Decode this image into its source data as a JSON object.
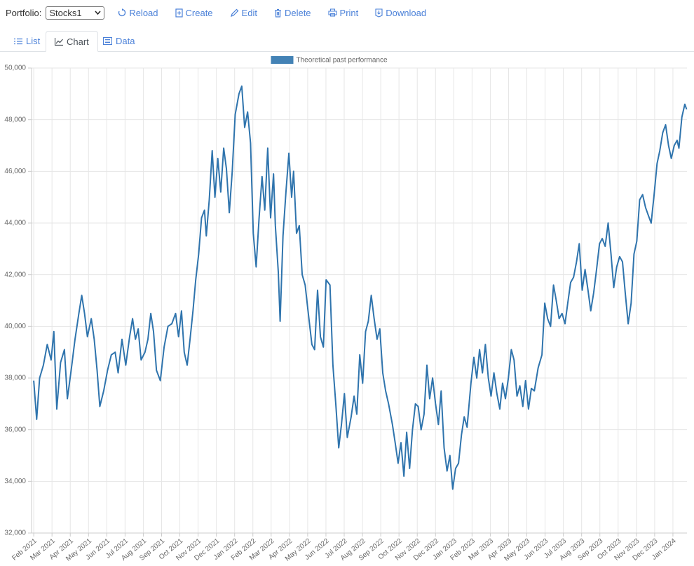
{
  "toolbar": {
    "label": "Portfolio:",
    "selected": "Stocks1",
    "buttons": [
      "Reload",
      "Create",
      "Edit",
      "Delete",
      "Print",
      "Download"
    ]
  },
  "tabs": [
    "List",
    "Chart",
    "Data"
  ],
  "chart_data": {
    "type": "line",
    "x": [
      0,
      0.16,
      0.32,
      0.53,
      0.74,
      0.95,
      1.1,
      1.26,
      1.47,
      1.68,
      1.84,
      2.05,
      2.26,
      2.47,
      2.63,
      2.78,
      2.94,
      3.15,
      3.31,
      3.47,
      3.62,
      3.83,
      4.04,
      4.25,
      4.46,
      4.62,
      4.83,
      5.04,
      5.25,
      5.41,
      5.57,
      5.72,
      5.88,
      6.09,
      6.25,
      6.41,
      6.56,
      6.72,
      6.93,
      7.14,
      7.35,
      7.56,
      7.77,
      7.93,
      8.09,
      8.24,
      8.4,
      8.56,
      8.72,
      8.87,
      9.03,
      9.19,
      9.35,
      9.45,
      9.61,
      9.77,
      9.92,
      10.08,
      10.24,
      10.4,
      10.55,
      10.71,
      10.87,
      11.03,
      11.24,
      11.39,
      11.55,
      11.71,
      11.87,
      12.02,
      12.18,
      12.34,
      12.5,
      12.65,
      12.81,
      12.97,
      13.13,
      13.23,
      13.39,
      13.49,
      13.65,
      13.81,
      13.97,
      14.12,
      14.23,
      14.39,
      14.54,
      14.7,
      14.86,
      15.02,
      15.23,
      15.38,
      15.54,
      15.7,
      15.86,
      16.01,
      16.22,
      16.38,
      16.54,
      16.7,
      16.85,
      17.01,
      17.17,
      17.38,
      17.54,
      17.69,
      17.85,
      18.01,
      18.17,
      18.32,
      18.48,
      18.64,
      18.8,
      18.95,
      19.11,
      19.27,
      19.43,
      19.64,
      19.79,
      19.95,
      20.11,
      20.27,
      20.42,
      20.58,
      20.74,
      20.9,
      21.05,
      21.21,
      21.37,
      21.53,
      21.68,
      21.84,
      22.0,
      22.16,
      22.31,
      22.47,
      22.63,
      22.79,
      22.94,
      23.1,
      23.26,
      23.42,
      23.57,
      23.73,
      23.94,
      24.1,
      24.26,
      24.41,
      24.57,
      24.73,
      24.89,
      25.04,
      25.2,
      25.36,
      25.52,
      25.67,
      25.83,
      25.99,
      26.15,
      26.3,
      26.46,
      26.62,
      26.78,
      26.93,
      27.09,
      27.25,
      27.41,
      27.62,
      27.83,
      27.98,
      28.14,
      28.3,
      28.46,
      28.61,
      28.77,
      28.93,
      29.09,
      29.24,
      29.4,
      29.56,
      29.72,
      29.87,
      30.03,
      30.19,
      30.35,
      30.5,
      30.66,
      30.82,
      30.98,
      31.13,
      31.29,
      31.45,
      31.61,
      31.76,
      31.92,
      32.08,
      32.24,
      32.39,
      32.55,
      32.71,
      32.87,
      33.02,
      33.18,
      33.34,
      33.5,
      33.65,
      33.81,
      33.97,
      34.13,
      34.28,
      34.44,
      34.6,
      34.76,
      34.91,
      35.07,
      35.23,
      35.33,
      35.49,
      35.65,
      35.75
    ],
    "series": [
      {
        "name": "Theoretical past performance",
        "color": "#2f74ad",
        "values": [
          37900,
          36400,
          38000,
          38500,
          39300,
          38700,
          39800,
          36800,
          38600,
          39100,
          37200,
          38300,
          39500,
          40500,
          41200,
          40500,
          39600,
          40300,
          39500,
          38300,
          36900,
          37500,
          38300,
          38900,
          39000,
          38200,
          39500,
          38500,
          39600,
          40300,
          39500,
          39900,
          38700,
          39000,
          39500,
          40500,
          39800,
          38300,
          37900,
          39200,
          40000,
          40100,
          40500,
          39600,
          40600,
          39000,
          38500,
          39500,
          40600,
          41800,
          42800,
          44200,
          44500,
          43500,
          44900,
          46800,
          45000,
          46500,
          45200,
          46900,
          46100,
          44400,
          46000,
          48200,
          49000,
          49300,
          47700,
          48300,
          47100,
          43600,
          42300,
          44200,
          45800,
          44500,
          46900,
          44200,
          45900,
          43900,
          42100,
          40200,
          43500,
          45200,
          46700,
          45000,
          46000,
          43600,
          43900,
          42000,
          41600,
          40600,
          39300,
          39100,
          41400,
          39600,
          39200,
          41800,
          41600,
          38500,
          37000,
          35300,
          36200,
          37400,
          35700,
          36500,
          37300,
          36600,
          38900,
          37800,
          39800,
          40200,
          41200,
          40300,
          39500,
          39900,
          38200,
          37500,
          37000,
          36200,
          35500,
          34700,
          35500,
          34200,
          35900,
          34500,
          36000,
          37000,
          36900,
          36000,
          36600,
          38500,
          37200,
          38000,
          37000,
          36200,
          37500,
          35300,
          34400,
          35000,
          33700,
          34500,
          34700,
          35800,
          36500,
          36100,
          37800,
          38800,
          38000,
          39100,
          38200,
          39300,
          38000,
          37300,
          38200,
          37400,
          36800,
          37800,
          37200,
          38000,
          39100,
          38700,
          37300,
          37700,
          36900,
          37900,
          36800,
          37600,
          37500,
          38400,
          38900,
          40900,
          40300,
          40000,
          41600,
          41000,
          40300,
          40500,
          40100,
          40900,
          41700,
          41900,
          42500,
          43200,
          41400,
          42200,
          41400,
          40600,
          41300,
          42200,
          43200,
          43400,
          43100,
          44000,
          42800,
          41500,
          42300,
          42700,
          42500,
          41300,
          40100,
          40900,
          42800,
          43300,
          44900,
          45100,
          44600,
          44300,
          44000,
          45100,
          46300,
          46800,
          47500,
          47800,
          47000,
          46500,
          47000,
          47200,
          46900,
          48100,
          48600,
          48400
        ]
      }
    ],
    "xlim": [
      -0.12,
      35.77
    ],
    "ylim": [
      32000,
      50000
    ],
    "xticks": [
      {
        "value": 0,
        "label": "Feb 2021"
      },
      {
        "value": 1,
        "label": "Mar 2021"
      },
      {
        "value": 2,
        "label": "Apr 2021"
      },
      {
        "value": 3,
        "label": "May 2021"
      },
      {
        "value": 4,
        "label": "Jun 2021"
      },
      {
        "value": 5,
        "label": "Jul 2021"
      },
      {
        "value": 6,
        "label": "Aug 2021"
      },
      {
        "value": 7,
        "label": "Sep 2021"
      },
      {
        "value": 8,
        "label": "Oct 2021"
      },
      {
        "value": 9,
        "label": "Nov 2021"
      },
      {
        "value": 10,
        "label": "Dec 2021"
      },
      {
        "value": 11,
        "label": "Jan 2022"
      },
      {
        "value": 12,
        "label": "Feb 2022"
      },
      {
        "value": 13,
        "label": "Mar 2022"
      },
      {
        "value": 14,
        "label": "Apr 2022"
      },
      {
        "value": 15,
        "label": "May 2022"
      },
      {
        "value": 16,
        "label": "Jun 2022"
      },
      {
        "value": 17,
        "label": "Jul 2022"
      },
      {
        "value": 18,
        "label": "Aug 2022"
      },
      {
        "value": 19,
        "label": "Sep 2022"
      },
      {
        "value": 20,
        "label": "Oct 2022"
      },
      {
        "value": 21,
        "label": "Nov 2022"
      },
      {
        "value": 22,
        "label": "Dec 2022"
      },
      {
        "value": 23,
        "label": "Jan 2023"
      },
      {
        "value": 24,
        "label": "Feb 2023"
      },
      {
        "value": 25,
        "label": "Mar 2023"
      },
      {
        "value": 26,
        "label": "Apr 2023"
      },
      {
        "value": 27,
        "label": "May 2023"
      },
      {
        "value": 28,
        "label": "Jun 2023"
      },
      {
        "value": 29,
        "label": "Jul 2023"
      },
      {
        "value": 30,
        "label": "Aug 2023"
      },
      {
        "value": 31,
        "label": "Sep 2023"
      },
      {
        "value": 32,
        "label": "Oct 2023"
      },
      {
        "value": 33,
        "label": "Nov 2023"
      },
      {
        "value": 34,
        "label": "Dec 2023"
      },
      {
        "value": 35,
        "label": "Jan 2024"
      }
    ],
    "yticks": [
      {
        "value": 32000,
        "label": "32,000"
      },
      {
        "value": 34000,
        "label": "34,000"
      },
      {
        "value": 36000,
        "label": "36,000"
      },
      {
        "value": 38000,
        "label": "38,000"
      },
      {
        "value": 40000,
        "label": "40,000"
      },
      {
        "value": 42000,
        "label": "42,000"
      },
      {
        "value": 44000,
        "label": "44,000"
      },
      {
        "value": 46000,
        "label": "46,000"
      },
      {
        "value": 48000,
        "label": "48,000"
      },
      {
        "value": 50000,
        "label": "50,000"
      }
    ],
    "grid": true,
    "legend": "top"
  }
}
